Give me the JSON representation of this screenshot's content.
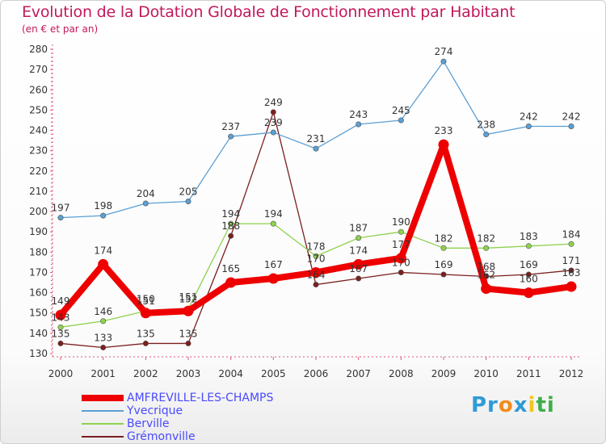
{
  "title": "Evolution de la Dotation Globale de Fonctionnement par Habitant",
  "subtitle": "(en € et par an)",
  "logo": {
    "parts": [
      "Pr",
      "o",
      "x",
      "i",
      "ti"
    ],
    "colors": [
      "#2e9bd6",
      "#f28c1e",
      "#2e9bd6",
      "#f2c41e",
      "#3fae49"
    ]
  },
  "chart_data": {
    "type": "line",
    "x": [
      "2000",
      "2001",
      "2002",
      "2003",
      "2004",
      "2005",
      "2006",
      "2007",
      "2008",
      "2009",
      "2010",
      "2011",
      "2012"
    ],
    "ylim": [
      130,
      280
    ],
    "yticks": [
      130,
      140,
      150,
      160,
      170,
      180,
      190,
      200,
      210,
      220,
      230,
      240,
      250,
      260,
      270,
      280
    ],
    "grid": false,
    "legend": "bottom-left",
    "series": [
      {
        "name": "AMFREVILLE-LES-CHAMPS",
        "color": "#ee0000",
        "values": [
          149,
          174,
          150,
          151,
          165,
          167,
          170,
          174,
          177,
          233,
          162,
          160,
          163
        ],
        "labels": [
          "149",
          "174",
          "150",
          "151",
          "165",
          "167",
          "170",
          "174",
          "177",
          "233",
          "162",
          "160",
          "163"
        ]
      },
      {
        "name": "Yvecrique",
        "color": "#5b9fd4",
        "values": [
          197,
          198,
          204,
          205,
          237,
          239,
          231,
          243,
          245,
          274,
          238,
          242,
          242
        ],
        "labels": [
          "197",
          "198",
          "204",
          "205",
          "237",
          "239",
          "231",
          "243",
          "245",
          "274",
          "238",
          "242",
          "242"
        ]
      },
      {
        "name": "Berville",
        "color": "#8fd14f",
        "values": [
          143,
          146,
          151,
          152,
          194,
          194,
          178,
          187,
          190,
          182,
          182,
          183,
          184
        ],
        "labels": [
          "143",
          "146",
          "151",
          "152",
          "194",
          "194",
          "178",
          "187",
          "190",
          "182",
          "182",
          "183",
          "184"
        ]
      },
      {
        "name": "Grémonville",
        "color": "#7a1f1f",
        "values": [
          135,
          133,
          135,
          135,
          188,
          249,
          164,
          167,
          170,
          169,
          168,
          169,
          171
        ],
        "labels": [
          "135",
          "133",
          "135",
          "135",
          "188",
          "249",
          "164",
          "167",
          "170",
          "169",
          "168",
          "169",
          "171"
        ]
      }
    ]
  }
}
